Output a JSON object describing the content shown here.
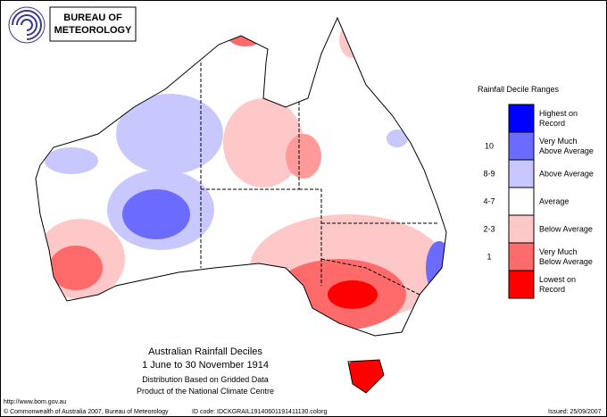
{
  "header": {
    "logo_text": [
      "BUREAU OF",
      "METEOROLOGY"
    ]
  },
  "legend": {
    "title": "Rainfall Decile Ranges",
    "items": [
      {
        "label": [
          "Highest on",
          "Record"
        ],
        "color": "#0000ff"
      },
      {
        "label": [
          "Very Much",
          "Above Average"
        ],
        "decile": "10",
        "color": "#6b6bff"
      },
      {
        "label": [
          "Above Average"
        ],
        "decile": "8-9",
        "color": "#c8c8ff"
      },
      {
        "label": [
          "Average"
        ],
        "decile": "4-7",
        "color": "#ffffff"
      },
      {
        "label": [
          "Below Average"
        ],
        "decile": "2-3",
        "color": "#ffc8c8"
      },
      {
        "label": [
          "Very Much",
          "Below Average"
        ],
        "decile": "1",
        "color": "#ff6b6b"
      },
      {
        "label": [
          "Lowest on",
          "Record"
        ],
        "color": "#ff0000"
      }
    ]
  },
  "caption": {
    "title": "Australian Rainfall Deciles",
    "period": "1 June to 30 November 1914",
    "note1": "Distribution Based on Gridded Data",
    "note2": "Product of the National Climate Centre"
  },
  "footer": {
    "url": "http://www.bom.gov.au",
    "copyright": "© Commonwealth of Australia 2007, Bureau of Meteorology",
    "id_code": "ID code: IDCKGRAIL19140601191411130.colorg",
    "issued": "Issued: 25/09/2007"
  }
}
